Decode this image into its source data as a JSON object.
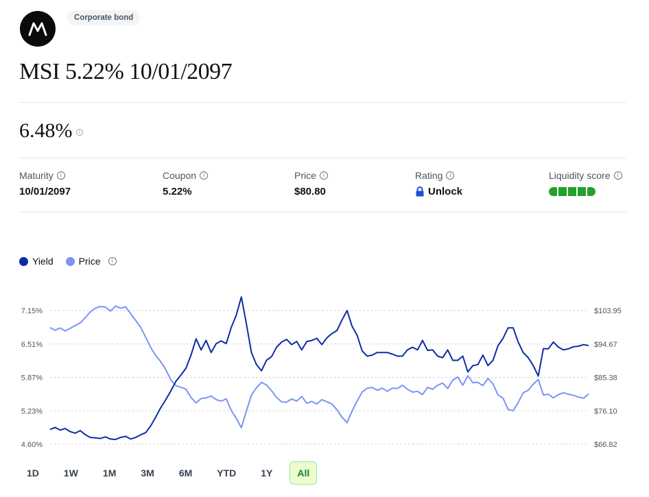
{
  "header": {
    "badge": "Corporate bond",
    "title": "MSI 5.22% 10/01/2097",
    "logo_icon": "motorola-logo"
  },
  "yield_value": "6.48%",
  "stats": {
    "maturity": {
      "label": "Maturity",
      "value": "10/01/2097"
    },
    "coupon": {
      "label": "Coupon",
      "value": "5.22%"
    },
    "price": {
      "label": "Price",
      "value": "$80.80"
    },
    "rating": {
      "label": "Rating",
      "value": "Unlock"
    },
    "liquidity": {
      "label": "Liquidity score",
      "filled": 5,
      "total": 5,
      "color": "#22a12b"
    }
  },
  "legend": [
    {
      "name": "Yield",
      "color": "#0b2ba5"
    },
    {
      "name": "Price",
      "color": "#7b93f5"
    }
  ],
  "ranges": [
    "1D",
    "1W",
    "1M",
    "3M",
    "6M",
    "YTD",
    "1Y",
    "All"
  ],
  "active_range": "All",
  "chart_data": {
    "type": "line",
    "ylabel_left_ticks": [
      "7.15%",
      "6.51%",
      "5.87%",
      "5.23%",
      "4.60%"
    ],
    "ylabel_right_ticks": [
      "$103.95",
      "$94.67",
      "$85.38",
      "$76.10",
      "$66.82"
    ],
    "ylim_left": [
      4.6,
      7.15
    ],
    "ylim_right": [
      66.82,
      103.95
    ],
    "grid": true,
    "legend_position": "top-left",
    "series": [
      {
        "name": "Yield",
        "color": "#0b2ba5",
        "values": [
          4.88,
          4.92,
          4.87,
          4.9,
          4.84,
          4.81,
          4.86,
          4.78,
          4.73,
          4.72,
          4.71,
          4.74,
          4.7,
          4.69,
          4.73,
          4.75,
          4.7,
          4.73,
          4.78,
          4.82,
          4.95,
          5.12,
          5.3,
          5.45,
          5.62,
          5.8,
          5.92,
          6.05,
          6.3,
          6.61,
          6.4,
          6.58,
          6.35,
          6.52,
          6.57,
          6.52,
          6.83,
          7.06,
          7.41,
          6.9,
          6.35,
          6.12,
          6.0,
          6.2,
          6.27,
          6.45,
          6.55,
          6.6,
          6.5,
          6.56,
          6.4,
          6.56,
          6.58,
          6.62,
          6.5,
          6.63,
          6.71,
          6.77,
          6.97,
          7.15,
          6.85,
          6.68,
          6.38,
          6.28,
          6.3,
          6.35,
          6.35,
          6.35,
          6.32,
          6.28,
          6.28,
          6.4,
          6.45,
          6.4,
          6.58,
          6.39,
          6.4,
          6.28,
          6.25,
          6.4,
          6.2,
          6.2,
          6.28,
          5.98,
          6.1,
          6.12,
          6.3,
          6.1,
          6.2,
          6.48,
          6.62,
          6.82,
          6.82,
          6.55,
          6.35,
          6.25,
          6.1,
          5.9,
          6.42,
          6.42,
          6.55,
          6.45,
          6.4,
          6.42,
          6.46,
          6.47,
          6.5,
          6.48
        ]
      },
      {
        "name": "Price",
        "color": "#7b93f5",
        "values": [
          99.2,
          98.5,
          99.1,
          98.3,
          99.0,
          99.8,
          100.5,
          102.0,
          103.6,
          104.6,
          105.1,
          104.9,
          103.8,
          105.2,
          104.6,
          105.0,
          103.1,
          101.2,
          99.3,
          96.5,
          93.7,
          91.4,
          89.7,
          87.6,
          84.6,
          83.1,
          82.6,
          82.1,
          79.8,
          78.3,
          79.5,
          79.7,
          80.2,
          79.2,
          78.8,
          79.4,
          76.2,
          74.0,
          71.4,
          76.0,
          80.5,
          82.5,
          84.0,
          83.3,
          81.7,
          79.8,
          78.6,
          78.5,
          79.4,
          78.8,
          80.1,
          78.2,
          78.7,
          78.0,
          79.2,
          78.6,
          78.0,
          76.4,
          74.3,
          72.8,
          76.0,
          78.8,
          81.3,
          82.4,
          82.6,
          81.8,
          82.4,
          81.5,
          82.4,
          82.3,
          83.2,
          82.1,
          81.3,
          81.5,
          80.6,
          82.6,
          82.1,
          83.2,
          83.8,
          82.3,
          84.6,
          85.5,
          83.2,
          85.8,
          83.9,
          84.0,
          83.1,
          85.1,
          83.6,
          80.5,
          79.6,
          76.5,
          76.1,
          78.4,
          81.1,
          81.8,
          83.5,
          84.8,
          80.5,
          80.7,
          79.7,
          80.6,
          81.1,
          80.7,
          80.4,
          79.9,
          79.6,
          80.8
        ]
      }
    ]
  }
}
